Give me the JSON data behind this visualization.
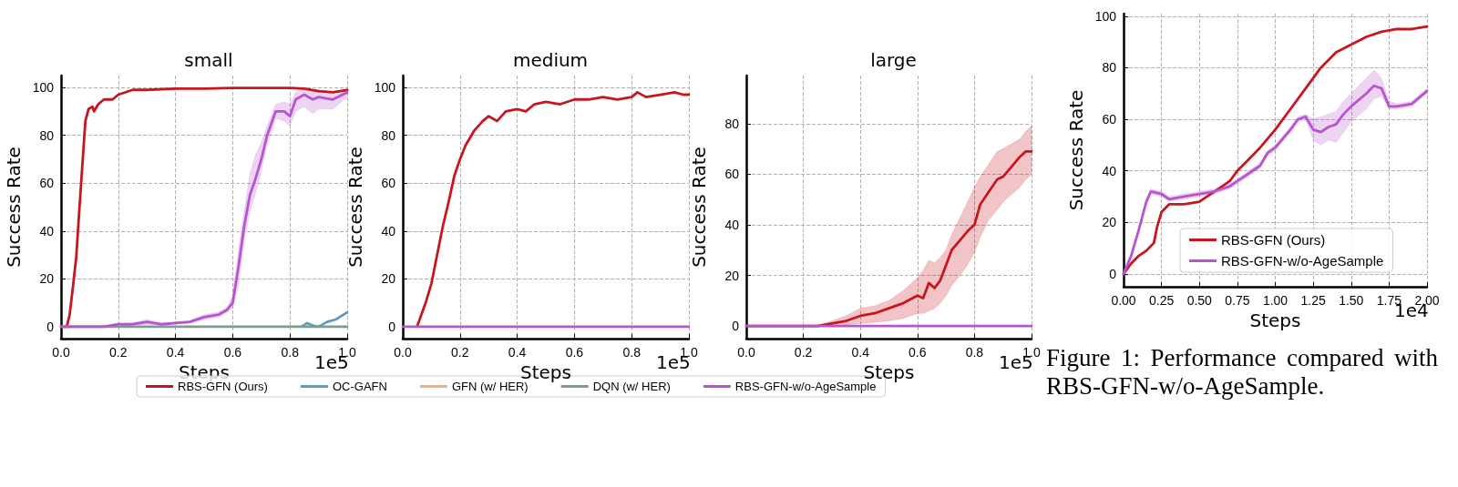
{
  "chart_data": [
    {
      "type": "line",
      "title": "small",
      "xlabel": "Steps",
      "ylabel": "Success Rate",
      "annotations": [
        "1e5"
      ],
      "xlim": [
        0,
        1
      ],
      "ylim": [
        -5,
        105
      ],
      "xticks": [
        {
          "value": 0,
          "label": "0.0"
        },
        0.2,
        0.4,
        0.6,
        0.8,
        {
          "value": 1,
          "label": "1.0"
        }
      ],
      "yticks": [
        0,
        20,
        40,
        60,
        80,
        100
      ],
      "grid": true,
      "legend": "bottom",
      "series": [
        {
          "name": "RBS-GFN (Ours)",
          "color": "#c8161e",
          "x": [
            0,
            0.02,
            0.03,
            0.04,
            0.053,
            0.069,
            0.085,
            0.096,
            0.11,
            0.115,
            0.13,
            0.15,
            0.18,
            0.2,
            0.25,
            0.3,
            0.4,
            0.5,
            0.6,
            0.7,
            0.8,
            0.85,
            0.9,
            0.95,
            1.0
          ],
          "values": [
            0,
            0,
            5,
            15,
            29,
            58,
            86,
            91,
            92,
            90,
            93,
            95,
            95,
            97,
            99,
            99,
            99.5,
            99.5,
            99.8,
            99.8,
            99.8,
            99.5,
            98.5,
            98,
            99
          ]
        },
        {
          "name": "OC-GAFN",
          "color": "#5b9bc4",
          "x": [
            0.84,
            0.86,
            0.88,
            0.9,
            0.93,
            0.96,
            1.0
          ],
          "values": [
            0,
            1.5,
            0.5,
            0,
            2,
            3,
            6
          ]
        },
        {
          "name": "GFN (w/ HER)",
          "color": "#f2b07e"
        },
        {
          "name": "DQN (w/ HER)",
          "color": "#7a9e8e",
          "x": [
            0,
            1
          ],
          "values": [
            0,
            0
          ]
        },
        {
          "name": "RBS-GFN-w/o-AgeSample",
          "color": "#b853d1",
          "x": [
            0,
            0.15,
            0.2,
            0.25,
            0.3,
            0.35,
            0.4,
            0.45,
            0.5,
            0.55,
            0.58,
            0.6,
            0.62,
            0.64,
            0.66,
            0.68,
            0.7,
            0.72,
            0.75,
            0.78,
            0.8,
            0.82,
            0.85,
            0.88,
            0.9,
            0.95,
            1.0
          ],
          "values": [
            0,
            0,
            1,
            1,
            2,
            1,
            1.5,
            2,
            4,
            5,
            7,
            10,
            25,
            42,
            55,
            62,
            70,
            80,
            90,
            90,
            88,
            95,
            97,
            95,
            96,
            95,
            98
          ],
          "lower": [
            0,
            0,
            0.5,
            0.5,
            1,
            0.5,
            1,
            1.5,
            3,
            4,
            6,
            8,
            18,
            36,
            48,
            56,
            65,
            76,
            87,
            86,
            84,
            90,
            92,
            89,
            91,
            91,
            96
          ],
          "upper": [
            0,
            0,
            1.5,
            1.5,
            3,
            1.5,
            2,
            2.5,
            5,
            6,
            8,
            13,
            32,
            48,
            64,
            72,
            77,
            84,
            93,
            94,
            93,
            98,
            100,
            99,
            99,
            98,
            99
          ]
        }
      ]
    },
    {
      "type": "line",
      "title": "medium",
      "xlabel": "Steps",
      "ylabel": "Success Rate",
      "annotations": [
        "1e5"
      ],
      "xlim": [
        0,
        1
      ],
      "ylim": [
        -5,
        105
      ],
      "xticks": [
        {
          "value": 0,
          "label": "0.0"
        },
        0.2,
        0.4,
        0.6,
        0.8,
        {
          "value": 1,
          "label": "1.0"
        }
      ],
      "yticks": [
        0,
        20,
        40,
        60,
        80,
        100
      ],
      "grid": true,
      "series": [
        {
          "color": "#c8161e",
          "x": [
            0.05,
            0.08,
            0.1,
            0.12,
            0.14,
            0.16,
            0.18,
            0.2,
            0.22,
            0.25,
            0.28,
            0.3,
            0.33,
            0.36,
            0.4,
            0.43,
            0.46,
            0.5,
            0.55,
            0.6,
            0.65,
            0.7,
            0.75,
            0.8,
            0.82,
            0.85,
            0.9,
            0.95,
            0.98,
            1.0
          ],
          "values": [
            0,
            10,
            18,
            30,
            42,
            52,
            63,
            70,
            76,
            82,
            86,
            88,
            86,
            90,
            91,
            90,
            93,
            94,
            93,
            95,
            95,
            96,
            95,
            96,
            98,
            96,
            97,
            98,
            97,
            97
          ]
        },
        {
          "color": "#b853d1",
          "x": [
            0,
            1
          ],
          "values": [
            0,
            0
          ]
        }
      ]
    },
    {
      "type": "line",
      "title": "large",
      "xlabel": "Steps",
      "ylabel": "Success Rate",
      "annotations": [
        "1e5"
      ],
      "xlim": [
        0,
        1
      ],
      "ylim": [
        -5,
        99
      ],
      "xticks": [
        {
          "value": 0,
          "label": "0.0"
        },
        0.2,
        0.4,
        0.6,
        0.8,
        {
          "value": 1,
          "label": "1.0"
        }
      ],
      "yticks": [
        0,
        20,
        40,
        60,
        80
      ],
      "grid": true,
      "series": [
        {
          "color": "#c8161e",
          "x": [
            0,
            0.25,
            0.3,
            0.35,
            0.4,
            0.45,
            0.5,
            0.55,
            0.6,
            0.62,
            0.64,
            0.66,
            0.68,
            0.7,
            0.72,
            0.75,
            0.78,
            0.8,
            0.82,
            0.85,
            0.88,
            0.9,
            0.93,
            0.96,
            0.98,
            1.0
          ],
          "values": [
            0,
            0,
            1,
            2,
            4,
            5,
            7,
            9,
            12,
            11,
            17,
            15,
            18,
            24,
            30,
            34,
            38,
            40,
            48,
            53,
            58,
            59,
            63,
            67,
            69,
            69
          ],
          "lower": [
            0,
            0,
            0,
            0.5,
            1,
            1.5,
            2,
            3,
            5,
            5,
            6,
            7,
            9,
            12,
            16,
            20,
            25,
            29,
            35,
            42,
            46,
            49,
            52,
            55,
            58,
            60
          ],
          "upper": [
            0,
            0,
            2,
            4,
            7,
            8,
            10,
            14,
            19,
            22,
            26,
            25,
            27,
            30,
            36,
            43,
            50,
            55,
            59,
            64,
            69,
            70,
            72,
            74,
            77,
            79
          ]
        },
        {
          "color": "#b853d1",
          "x": [
            0,
            1
          ],
          "values": [
            0,
            0
          ]
        }
      ]
    },
    {
      "type": "line",
      "xlabel": "Steps",
      "ylabel": "Success Rate",
      "annotations": [
        "1e4",
        "Figure 1: Performance compared with RBS-GFN-w/o-AgeSample."
      ],
      "xlim": [
        0,
        2
      ],
      "ylim": [
        -5,
        101
      ],
      "xticks": [
        {
          "value": 0,
          "label": "0.00"
        },
        0.25,
        {
          "value": 0.5,
          "label": "0.50"
        },
        0.75,
        {
          "value": 1,
          "label": "1.00"
        },
        1.25,
        {
          "value": 1.5,
          "label": "1.50"
        },
        1.75,
        {
          "value": 2,
          "label": "2.00"
        }
      ],
      "yticks": [
        0,
        20,
        40,
        60,
        80,
        100
      ],
      "grid": true,
      "legend": "bottom left",
      "series": [
        {
          "name": "RBS-GFN (Ours)",
          "color": "#c8161e",
          "x": [
            0,
            0.05,
            0.1,
            0.15,
            0.2,
            0.22,
            0.25,
            0.3,
            0.4,
            0.5,
            0.55,
            0.6,
            0.7,
            0.75,
            0.8,
            0.9,
            1.0,
            1.1,
            1.2,
            1.3,
            1.4,
            1.5,
            1.6,
            1.7,
            1.8,
            1.9,
            2.0
          ],
          "values": [
            0,
            4,
            7,
            9,
            12,
            18,
            24,
            27,
            27,
            28,
            30,
            32,
            36,
            40,
            43,
            49,
            56,
            64,
            72,
            80,
            86,
            89,
            92,
            94,
            95,
            95,
            96
          ]
        },
        {
          "name": "RBS-GFN-w/o-AgeSample",
          "color": "#b853d1",
          "x": [
            0,
            0.05,
            0.1,
            0.15,
            0.18,
            0.25,
            0.3,
            0.4,
            0.5,
            0.6,
            0.7,
            0.75,
            0.8,
            0.9,
            0.95,
            1.0,
            1.1,
            1.15,
            1.2,
            1.25,
            1.3,
            1.35,
            1.4,
            1.45,
            1.5,
            1.6,
            1.65,
            1.7,
            1.75,
            1.8,
            1.9,
            2.0
          ],
          "values": [
            0,
            7,
            17,
            28,
            32,
            31,
            29,
            30,
            31,
            32,
            34,
            36,
            38,
            42,
            47,
            49,
            56,
            60,
            61,
            56,
            55,
            57,
            58,
            62,
            65,
            70,
            73,
            72,
            65,
            65,
            66,
            71
          ],
          "lower": [
            0,
            6,
            16,
            27,
            31,
            30,
            28,
            29,
            30,
            31,
            33,
            35,
            37,
            41,
            46,
            48,
            55,
            59,
            60,
            52,
            50,
            52,
            51,
            55,
            59,
            64,
            68,
            69,
            64,
            64,
            65,
            70
          ],
          "upper": [
            0,
            8,
            18,
            29,
            33,
            32,
            30,
            31,
            32,
            33,
            35,
            37,
            39,
            43,
            48,
            50,
            57,
            61,
            62,
            60,
            61,
            62,
            63,
            67,
            70,
            76,
            79,
            76,
            67,
            66,
            67,
            72
          ]
        }
      ]
    }
  ]
}
